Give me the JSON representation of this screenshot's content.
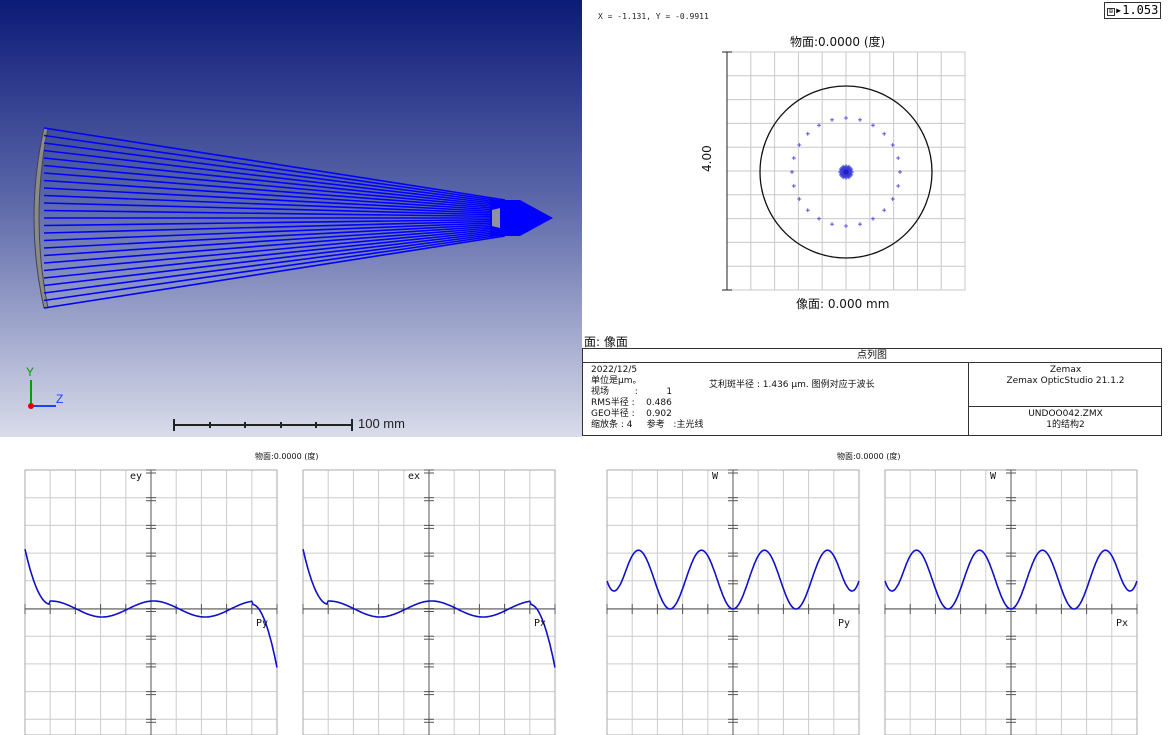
{
  "layout_view": {
    "axis_y": "Y",
    "axis_z": "Z",
    "scale_label": "100 mm",
    "ray_color": "#0000ff"
  },
  "spot_diagram": {
    "coord_readout": "X = -1.131, Y = -0.9911",
    "zoom_value": "1.053",
    "title": "物面:0.0000 (度)",
    "image_plane": "像面: 0.000 mm",
    "scale_value": "4.00",
    "surface_label": "面: 像面",
    "info": {
      "header": "点列图",
      "date": "2022/12/5",
      "units": "单位是μm。",
      "field_label": "视场",
      "field_value": "1",
      "airy": "艾利斑半径 : 1.436 μm. 图例对应于波长",
      "rms_label": "RMS半径 :",
      "rms_value": "0.486",
      "geo_label": "GEO半径 :",
      "geo_value": "0.902",
      "scale_line": "缩放条 : 4",
      "ref_label": "参考",
      "ref_value": ":主光线",
      "product_line1": "Zemax",
      "product_line2": "Zemax OpticStudio 21.1.2",
      "file_name": "UNDOO042.ZMX",
      "config": "1的结构2"
    }
  },
  "ray_fan": {
    "title": "物面:0.0000 (度)",
    "left_plot": {
      "y_label": "ey",
      "x_label": "Py"
    },
    "right_plot": {
      "y_label": "ex",
      "x_label": "Px"
    }
  },
  "opd_fan": {
    "title": "物面:0.0000 (度)",
    "left_plot": {
      "y_label": "W",
      "x_label": "Py"
    },
    "right_plot": {
      "y_label": "W",
      "x_label": "Px"
    }
  }
}
